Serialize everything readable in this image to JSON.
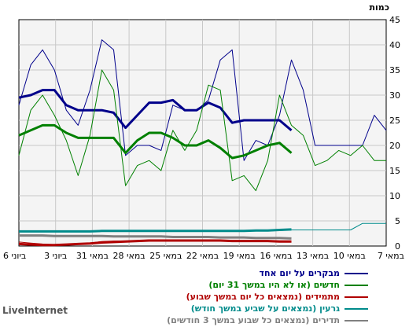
{
  "chart_data": {
    "type": "line",
    "unit_label": "כמות",
    "ylim": [
      0,
      45
    ],
    "yticks": [
      0,
      5,
      10,
      15,
      20,
      25,
      30,
      35,
      40,
      45
    ],
    "x_tick_labels": [
      "6 ביוני",
      "3 ביוני",
      "31 במאי",
      "28 במאי",
      "25 במאי",
      "22 במאי",
      "19 במאי",
      "16 במאי",
      "13 במאי",
      "10 במאי",
      "7 במאי"
    ],
    "grid": true,
    "legend_position": "bottom",
    "series": [
      {
        "name": "מבקרים על יום אחד",
        "color": "#00008b",
        "width": 1,
        "values": [
          28,
          36,
          39,
          35,
          27,
          24,
          31,
          41,
          39,
          18,
          20,
          20,
          19,
          28,
          27,
          27,
          29,
          37,
          39,
          17,
          21,
          20,
          26,
          37,
          31,
          20,
          20,
          20,
          20,
          20,
          26,
          23
        ]
      },
      {
        "name": "",
        "color": "#00008b",
        "width": 3,
        "values": [
          29.5,
          30,
          31,
          31,
          28,
          27,
          27,
          27,
          26.5,
          23.5,
          26,
          28.5,
          28.5,
          29,
          27,
          27,
          28.5,
          27.5,
          24.5,
          25,
          25,
          25,
          25,
          23,
          null,
          null,
          null,
          null,
          null,
          null,
          null,
          null
        ]
      },
      {
        "name": "חדשים (או לא היו במשך 31 יום)",
        "color": "#008000",
        "width": 1,
        "values": [
          18,
          27,
          30,
          26,
          21,
          14,
          22,
          35,
          31,
          12,
          16,
          17,
          15,
          23,
          19,
          23,
          32,
          31,
          13,
          14,
          11,
          17,
          30,
          24,
          22,
          16,
          17,
          19,
          18,
          20,
          17,
          17
        ]
      },
      {
        "name": "",
        "color": "#008000",
        "width": 3,
        "values": [
          22,
          23,
          24,
          24,
          22.5,
          21.5,
          21.5,
          21.5,
          21.5,
          18.5,
          21,
          22.5,
          22.5,
          21.5,
          20,
          20,
          21,
          19.5,
          17.5,
          18,
          19,
          20,
          20.5,
          18.5,
          null,
          null,
          null,
          null,
          null,
          null,
          null,
          null
        ]
      },
      {
        "name": "מתמידים (נמצאים כל יום במשך שבוע)",
        "color": "#b00000",
        "width": 1,
        "values": [
          0.8,
          0.6,
          0.4,
          0.3,
          0.3,
          0.4,
          0.6,
          0.9,
          1.0,
          1.0,
          1.1,
          1.2,
          1.2,
          1.2,
          1.1,
          1.1,
          1.1,
          1.1,
          1.1,
          1.0,
          1.0,
          1.0,
          1.0,
          0.9,
          null,
          null,
          null,
          null,
          null,
          null,
          null,
          null
        ]
      },
      {
        "name": "",
        "color": "#b00000",
        "width": 3,
        "values": [
          0.4,
          0.3,
          0.2,
          0.2,
          0.3,
          0.4,
          0.5,
          0.7,
          0.8,
          0.9,
          1.0,
          1.1,
          1.1,
          1.1,
          1.1,
          1.1,
          1.1,
          1.1,
          1.0,
          1.0,
          1.0,
          1.0,
          0.9,
          0.9,
          null,
          null,
          null,
          null,
          null,
          null,
          null,
          null
        ]
      },
      {
        "name": "גרעין (נמצאים על שביע במשך חודש)",
        "color": "#008b8b",
        "width": 1,
        "values": [
          3,
          2.9,
          2.9,
          2.9,
          2.9,
          2.9,
          3,
          3,
          3,
          3,
          3,
          3,
          3,
          3,
          3,
          3,
          3,
          3,
          3,
          3,
          3,
          3,
          3.1,
          3.2,
          3.2,
          3.2,
          3.2,
          3.2,
          3.2,
          4.5,
          4.5,
          4.5
        ]
      },
      {
        "name": "",
        "color": "#008b8b",
        "width": 3,
        "values": [
          2.9,
          2.9,
          2.9,
          2.9,
          2.9,
          2.9,
          2.9,
          3,
          3,
          3,
          3,
          3,
          3,
          3,
          3,
          3,
          3,
          3,
          3,
          3,
          3.1,
          3.1,
          3.2,
          3.3,
          null,
          null,
          null,
          null,
          null,
          null,
          null,
          null
        ]
      },
      {
        "name": "תדירים (נמצאים כל שבוע במשך 3 חודשים)",
        "color": "#808080",
        "width": 3,
        "values": [
          2.1,
          2.1,
          2.1,
          2.0,
          2.0,
          2.0,
          2.0,
          2.0,
          1.9,
          1.9,
          1.9,
          1.9,
          1.9,
          1.8,
          1.8,
          1.8,
          1.8,
          1.7,
          1.7,
          1.7,
          1.6,
          1.6,
          1.6,
          1.5,
          null,
          null,
          null,
          null,
          null,
          null,
          null,
          null
        ]
      }
    ]
  },
  "footer": {
    "brand": "LiveInternet"
  }
}
